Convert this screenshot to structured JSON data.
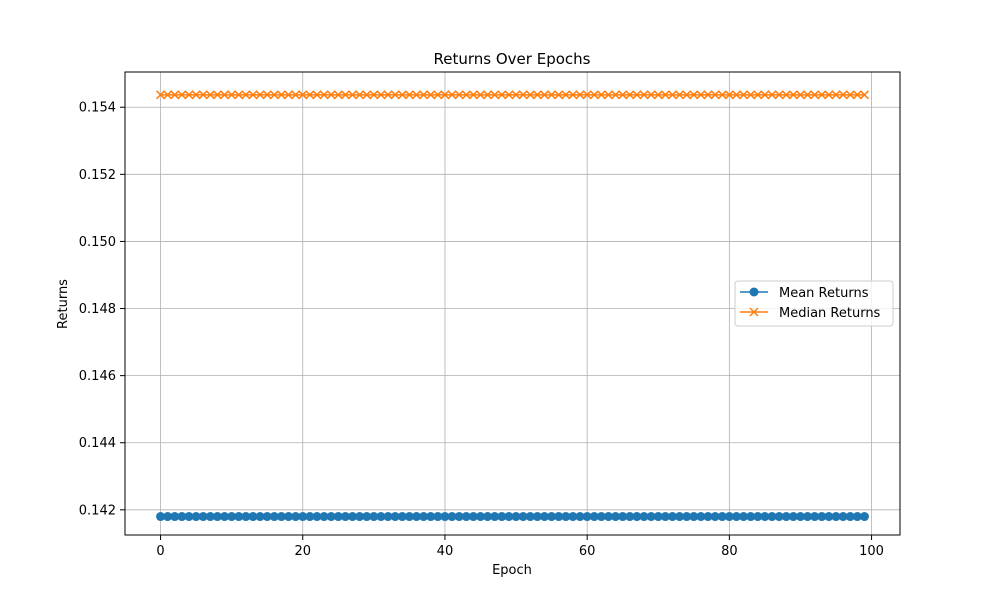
{
  "chart_data": {
    "type": "line",
    "title": "Returns Over Epochs",
    "xlabel": "Epoch",
    "ylabel": "Returns",
    "xlim": [
      -5,
      104
    ],
    "ylim": [
      0.14125,
      0.15505
    ],
    "xticks": [
      0,
      20,
      40,
      60,
      80,
      100
    ],
    "yticks": [
      0.142,
      0.144,
      0.146,
      0.148,
      0.15,
      0.152,
      0.154
    ],
    "xtick_labels": [
      "0",
      "20",
      "40",
      "60",
      "80",
      "100"
    ],
    "ytick_labels": [
      "0.142",
      "0.144",
      "0.146",
      "0.148",
      "0.150",
      "0.152",
      "0.154"
    ],
    "grid": true,
    "legend": "center-right",
    "x_start": 0,
    "x_end": 99,
    "series": [
      {
        "name": "Mean Returns",
        "marker": "circle",
        "color": "#1f77b4",
        "value": 0.1418
      },
      {
        "name": "Median Returns",
        "marker": "x",
        "color": "#ff7f0e",
        "value": 0.15437
      }
    ]
  }
}
